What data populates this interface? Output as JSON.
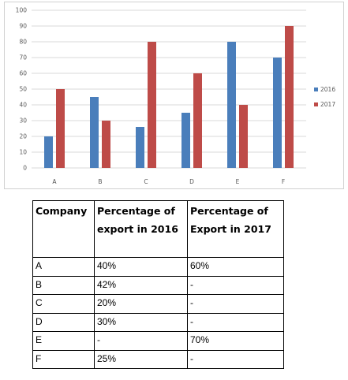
{
  "chart_data": {
    "type": "bar",
    "categories": [
      "A",
      "B",
      "C",
      "D",
      "E",
      "F"
    ],
    "series": [
      {
        "name": "2016",
        "values": [
          20,
          45,
          26,
          35,
          80,
          70
        ],
        "color": "#4a7ebb"
      },
      {
        "name": "2017",
        "values": [
          50,
          30,
          80,
          60,
          40,
          90
        ],
        "color": "#be4b48"
      }
    ],
    "y_ticks": [
      "0",
      "10",
      "20",
      "30",
      "40",
      "50",
      "60",
      "70",
      "80",
      "90",
      "100"
    ],
    "ylim": [
      0,
      100
    ],
    "grid": true,
    "legend": "right"
  },
  "table": {
    "headers": [
      "Company",
      "Percentage of export in 2016",
      "Percentage of Export in 2017"
    ],
    "rows": [
      [
        "A",
        "40%",
        "60%"
      ],
      [
        "B",
        "42%",
        "-"
      ],
      [
        "C",
        "20%",
        "-"
      ],
      [
        "D",
        "30%",
        "-"
      ],
      [
        "E",
        "-",
        "70%"
      ],
      [
        "F",
        "25%",
        "-"
      ]
    ]
  }
}
